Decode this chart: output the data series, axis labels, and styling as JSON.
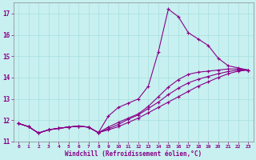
{
  "xlabel": "Windchill (Refroidissement éolien,°C)",
  "background_color": "#c8f0f0",
  "line_color": "#880088",
  "grid_color": "#a8dede",
  "xlim": [
    -0.5,
    23.5
  ],
  "ylim": [
    11.0,
    17.5
  ],
  "yticks": [
    11,
    12,
    13,
    14,
    15,
    16,
    17
  ],
  "xticks": [
    0,
    1,
    2,
    3,
    4,
    5,
    6,
    7,
    8,
    9,
    10,
    11,
    12,
    13,
    14,
    15,
    16,
    17,
    18,
    19,
    20,
    21,
    22,
    23
  ],
  "series1_x": [
    0,
    1,
    2,
    3,
    4,
    5,
    6,
    7,
    8,
    9,
    10,
    11,
    12,
    13,
    14,
    15,
    16,
    17,
    18,
    19,
    20,
    21,
    22,
    23
  ],
  "series1_y": [
    11.85,
    11.7,
    11.4,
    11.55,
    11.62,
    11.68,
    11.72,
    11.68,
    11.42,
    12.2,
    12.6,
    12.8,
    13.0,
    13.6,
    15.2,
    17.2,
    16.85,
    16.1,
    15.8,
    15.5,
    14.9,
    14.55,
    14.45,
    14.35
  ],
  "series2_x": [
    0,
    1,
    2,
    3,
    4,
    5,
    6,
    7,
    8,
    9,
    10,
    11,
    12,
    13,
    14,
    15,
    16,
    17,
    18,
    19,
    20,
    21,
    22,
    23
  ],
  "series2_y": [
    11.85,
    11.7,
    11.4,
    11.55,
    11.62,
    11.68,
    11.72,
    11.68,
    11.42,
    11.68,
    11.9,
    12.1,
    12.3,
    12.65,
    13.1,
    13.55,
    13.9,
    14.15,
    14.25,
    14.3,
    14.35,
    14.4,
    14.4,
    14.35
  ],
  "series3_x": [
    0,
    1,
    2,
    3,
    4,
    5,
    6,
    7,
    8,
    9,
    10,
    11,
    12,
    13,
    14,
    15,
    16,
    17,
    18,
    19,
    20,
    21,
    22,
    23
  ],
  "series3_y": [
    11.85,
    11.7,
    11.4,
    11.55,
    11.62,
    11.68,
    11.72,
    11.68,
    11.42,
    11.6,
    11.8,
    12.05,
    12.25,
    12.55,
    12.85,
    13.2,
    13.5,
    13.75,
    13.92,
    14.05,
    14.18,
    14.28,
    14.35,
    14.35
  ],
  "series4_x": [
    0,
    1,
    2,
    3,
    4,
    5,
    6,
    7,
    8,
    9,
    10,
    11,
    12,
    13,
    14,
    15,
    16,
    17,
    18,
    19,
    20,
    21,
    22,
    23
  ],
  "series4_y": [
    11.85,
    11.7,
    11.4,
    11.55,
    11.62,
    11.68,
    11.72,
    11.68,
    11.42,
    11.55,
    11.7,
    11.9,
    12.1,
    12.35,
    12.6,
    12.85,
    13.1,
    13.35,
    13.6,
    13.8,
    14.0,
    14.18,
    14.3,
    14.35
  ]
}
